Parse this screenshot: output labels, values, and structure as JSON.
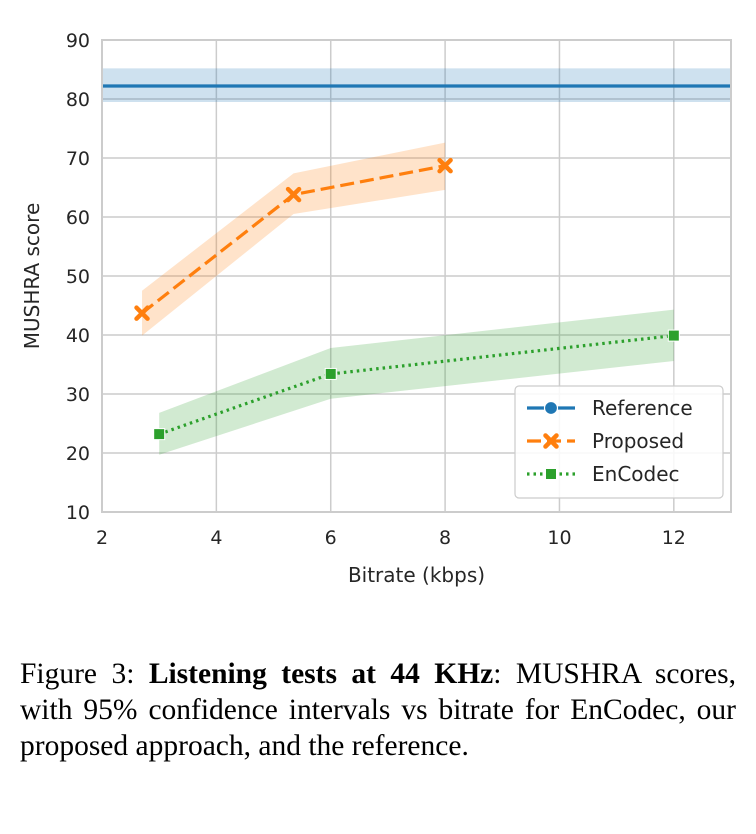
{
  "colors": {
    "reference": "#1f77b4",
    "proposed": "#ff7f0e",
    "encodec": "#2ca02c",
    "grid": "#cccccc",
    "axes": "#cccccc"
  },
  "chart_data": {
    "type": "line",
    "xlabel": "Bitrate (kbps)",
    "ylabel": "MUSHRA score",
    "xlim": [
      2,
      13
    ],
    "ylim": [
      10,
      90
    ],
    "xticks": [
      2,
      4,
      6,
      8,
      10,
      12
    ],
    "yticks": [
      10,
      20,
      30,
      40,
      50,
      60,
      70,
      80,
      90
    ],
    "grid": true,
    "legend_position": "lower-right",
    "series": [
      {
        "name": "Reference",
        "color_key": "reference",
        "marker": "circle",
        "line_style": "solid",
        "band_style": "full-width",
        "x": [
          2,
          13
        ],
        "y": [
          82.2,
          82.2
        ],
        "ci_low": [
          79.5,
          79.5
        ],
        "ci_high": [
          85.2,
          85.2
        ]
      },
      {
        "name": "Proposed",
        "color_key": "proposed",
        "marker": "x",
        "line_style": "dashed",
        "x": [
          2.7,
          5.35,
          8.0
        ],
        "y": [
          43.7,
          63.8,
          68.7
        ],
        "ci_low": [
          39.9,
          60.5,
          64.6
        ],
        "ci_high": [
          47.5,
          67.4,
          72.6
        ]
      },
      {
        "name": "EnCodec",
        "color_key": "encodec",
        "marker": "square",
        "line_style": "dotted",
        "x": [
          3.0,
          6.0,
          12.0
        ],
        "y": [
          23.2,
          33.4,
          39.9
        ],
        "ci_low": [
          19.7,
          29.2,
          35.6
        ],
        "ci_high": [
          26.8,
          37.8,
          44.3
        ]
      }
    ]
  },
  "caption": {
    "prefix": "Figure 3: ",
    "bold": "Listening tests at 44 KHz",
    "rest": ": MUSHRA scores, with 95% confidence intervals vs bitrate for EnCodec, our proposed approach, and the reference."
  }
}
